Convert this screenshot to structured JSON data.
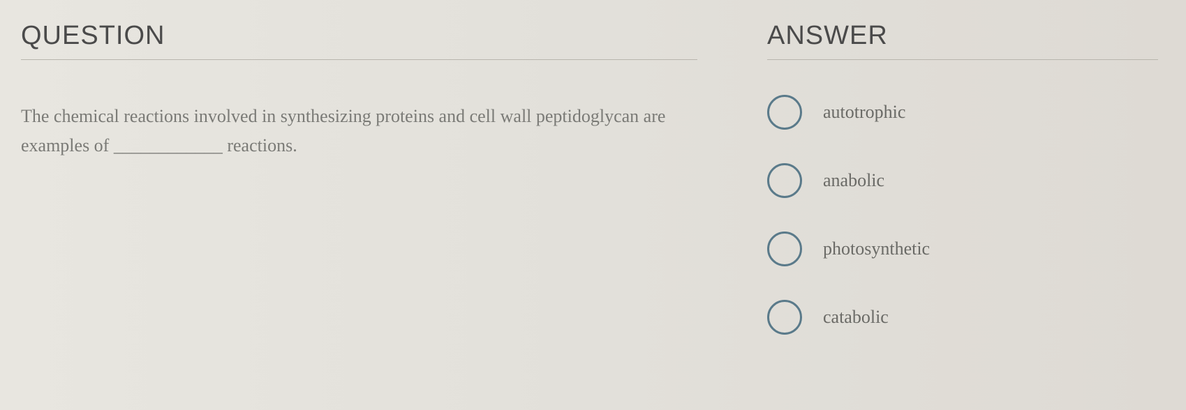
{
  "question": {
    "heading": "QUESTION",
    "text": "The chemical reactions involved in synthesizing proteins and cell wall peptidoglycan are examples of ____________ reactions."
  },
  "answer": {
    "heading": "ANSWER",
    "options": [
      {
        "label": "autotrophic"
      },
      {
        "label": "anabolic"
      },
      {
        "label": "photosynthetic"
      },
      {
        "label": "catabolic"
      }
    ]
  },
  "styles": {
    "radio_border_color": "#5a7a8a",
    "heading_color": "#4a4a4a",
    "text_color": "#7a7a76",
    "option_text_color": "#6a6a66",
    "divider_color": "#b8b5ad"
  }
}
